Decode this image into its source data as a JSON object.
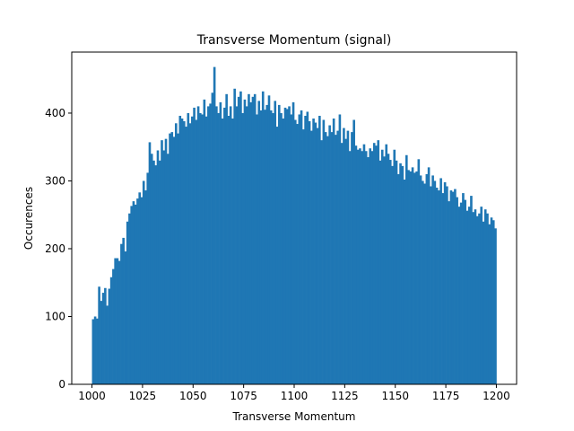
{
  "chart_data": {
    "type": "bar",
    "subtype": "histogram",
    "title": "Transverse Momentum (signal)",
    "xlabel": "Transverse Momentum",
    "ylabel": "Occurences",
    "xlim": [
      990,
      1210
    ],
    "ylim": [
      0,
      490
    ],
    "grid": false,
    "legend": "none",
    "color": "#1f77b4",
    "bin_range": [
      1000,
      1200
    ],
    "bin_count": 200,
    "xticks": [
      "1000",
      "1025",
      "1050",
      "1075",
      "1100",
      "1125",
      "1150",
      "1175",
      "1200"
    ],
    "yticks": [
      "0",
      "100",
      "200",
      "300",
      "400"
    ],
    "values": [
      96,
      100,
      97,
      144,
      123,
      135,
      142,
      116,
      141,
      158,
      170,
      186,
      186,
      182,
      207,
      216,
      196,
      240,
      252,
      263,
      270,
      265,
      274,
      283,
      276,
      300,
      286,
      312,
      357,
      340,
      330,
      323,
      345,
      330,
      360,
      345,
      362,
      340,
      370,
      372,
      365,
      385,
      370,
      396,
      392,
      388,
      380,
      400,
      385,
      395,
      408,
      390,
      410,
      400,
      398,
      420,
      395,
      410,
      414,
      430,
      468,
      410,
      400,
      416,
      392,
      408,
      428,
      396,
      410,
      392,
      436,
      410,
      424,
      432,
      400,
      420,
      410,
      428,
      416,
      424,
      428,
      398,
      418,
      404,
      432,
      405,
      412,
      426,
      404,
      400,
      418,
      380,
      412,
      400,
      392,
      408,
      406,
      410,
      398,
      416,
      390,
      384,
      398,
      404,
      376,
      396,
      402,
      388,
      374,
      392,
      386,
      378,
      396,
      360,
      390,
      372,
      366,
      382,
      372,
      392,
      368,
      374,
      398,
      356,
      378,
      362,
      374,
      344,
      372,
      390,
      352,
      346,
      348,
      344,
      354,
      344,
      335,
      348,
      344,
      356,
      352,
      360,
      330,
      346,
      336,
      354,
      340,
      331,
      322,
      346,
      330,
      310,
      326,
      322,
      302,
      338,
      316,
      314,
      320,
      312,
      314,
      332,
      308,
      300,
      296,
      310,
      320,
      292,
      308,
      300,
      290,
      286,
      304,
      282,
      298,
      292,
      270,
      286,
      284,
      288,
      276,
      262,
      268,
      282,
      272,
      256,
      262,
      278,
      254,
      258,
      248,
      252,
      262,
      240,
      258,
      252,
      236,
      246,
      242,
      230
    ]
  }
}
